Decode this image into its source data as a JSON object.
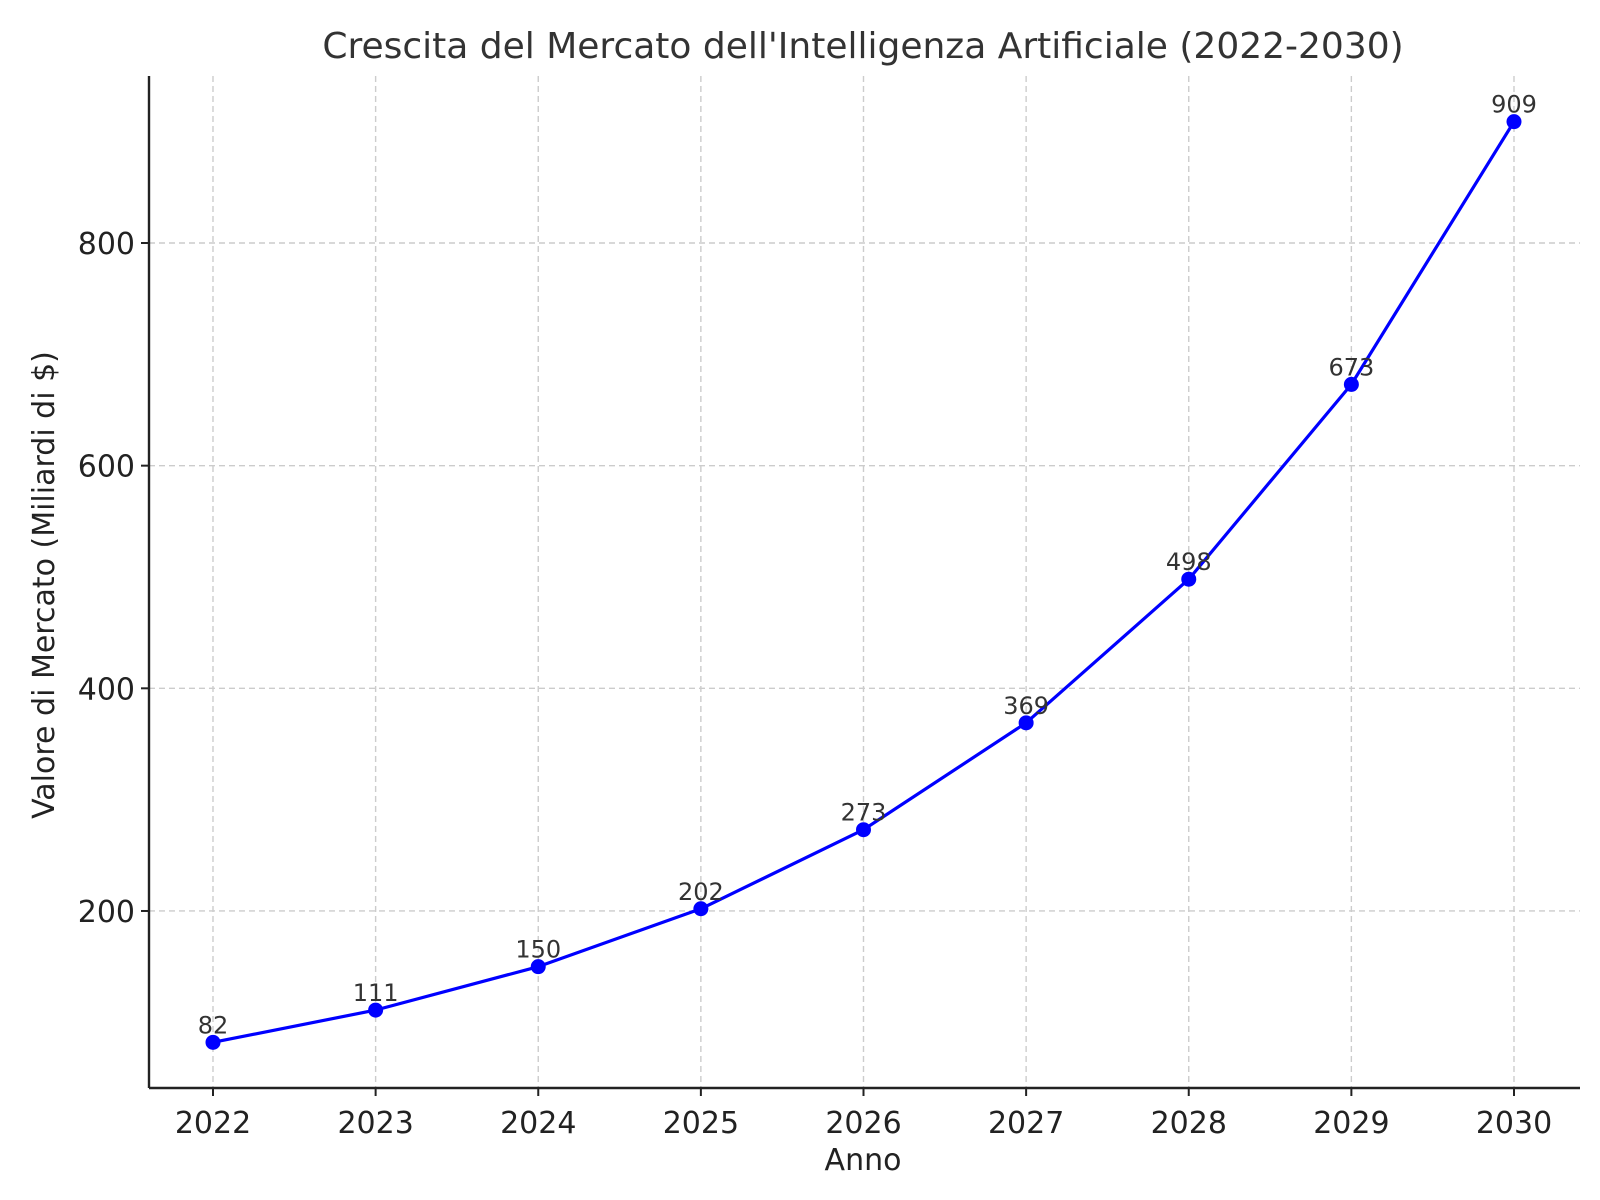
{
  "chart_data": {
    "type": "line",
    "title": "Crescita del Mercato dell'Intelligenza Artificiale (2022-2030)",
    "xlabel": "Anno",
    "ylabel": "Valore di Mercato (Miliardi di $)",
    "x": [
      "2022",
      "2023",
      "2024",
      "2025",
      "2026",
      "2027",
      "2028",
      "2029",
      "2030"
    ],
    "series": [
      {
        "name": "",
        "values": [
          82,
          111,
          150,
          202,
          273,
          369,
          498,
          673,
          909
        ]
      }
    ],
    "data_labels": [
      "82",
      "111",
      "150",
      "202",
      "273",
      "369",
      "498",
      "673",
      "909"
    ],
    "yticks": [
      200,
      400,
      600,
      800
    ],
    "ytick_labels": [
      "200",
      "400",
      "600",
      "800"
    ],
    "ylim": [
      41,
      950
    ],
    "grid": true,
    "series_color": "#0000ff",
    "marker": "circle"
  }
}
